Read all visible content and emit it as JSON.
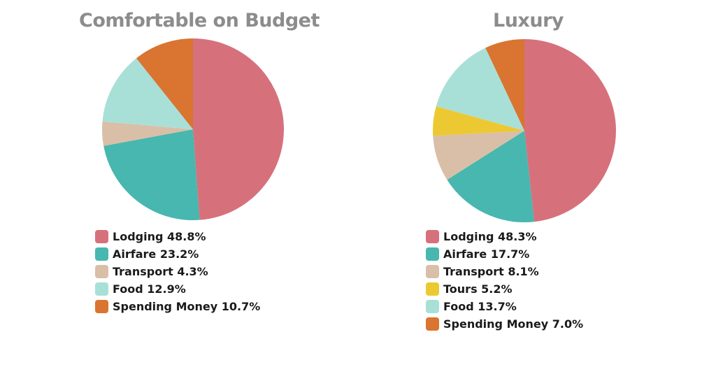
{
  "chart_data": [
    {
      "type": "pie",
      "title": "Comfortable on Budget",
      "series": [
        {
          "categories": [
            "Lodging",
            "Airfare",
            "Transport",
            "Food",
            "Spending Money"
          ],
          "values": [
            48.8,
            23.2,
            4.3,
            12.9,
            10.7
          ],
          "colors": [
            "#d6717c",
            "#47b7af",
            "#d9bfa7",
            "#a8e0d8",
            "#d97530"
          ]
        }
      ],
      "legend": [
        "Lodging 48.8%",
        "Airfare 23.2%",
        "Transport 4.3%",
        "Food 12.9%",
        "Spending Money 10.7%"
      ],
      "legend_placement": "bottom"
    },
    {
      "type": "pie",
      "title": "Luxury",
      "series": [
        {
          "categories": [
            "Lodging",
            "Airfare",
            "Transport",
            "Tours",
            "Food",
            "Spending Money"
          ],
          "values": [
            48.3,
            17.7,
            8.1,
            5.2,
            13.7,
            7.0
          ],
          "colors": [
            "#d6717c",
            "#47b7af",
            "#d9bfa7",
            "#ecc932",
            "#a8e0d8",
            "#d97530"
          ]
        }
      ],
      "legend": [
        "Lodging 48.3%",
        "Airfare 17.7%",
        "Transport 8.1%",
        "Tours 5.2%",
        "Food 13.7%",
        "Spending Money 7.0%"
      ],
      "legend_placement": "bottom"
    }
  ]
}
